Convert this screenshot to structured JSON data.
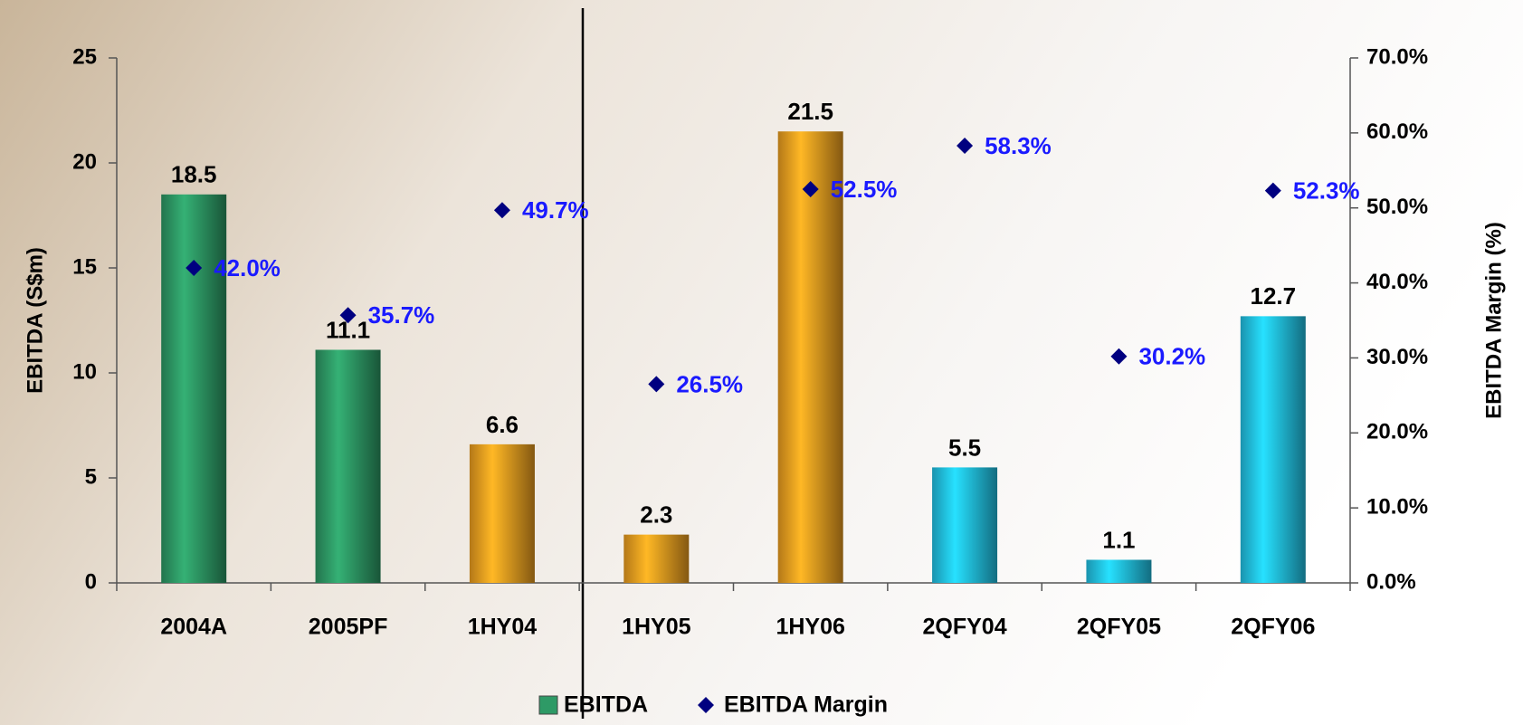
{
  "chart_data": {
    "type": "bar",
    "categories": [
      "2004A",
      "2005PF",
      "1HY04",
      "1HY05",
      "1HY06",
      "2QFY04",
      "2QFY05",
      "2QFY06"
    ],
    "series": [
      {
        "name": "EBITDA",
        "type": "bar",
        "color": "#2e9a66",
        "colors": [
          "#2e9a66",
          "#2e9a66",
          "#f0a020",
          "#f0a020",
          "#f0a020",
          "#22c4e8",
          "#22c4e8",
          "#22c4e8"
        ],
        "values": [
          18.5,
          11.1,
          6.6,
          2.3,
          21.5,
          5.5,
          1.1,
          12.7
        ]
      },
      {
        "name": "EBITDA Margin",
        "type": "scatter",
        "axis": "y2",
        "color": "#000080",
        "label_color": "#1a1aff",
        "values": [
          42.0,
          35.7,
          49.7,
          26.5,
          52.5,
          58.3,
          30.2,
          52.3
        ],
        "value_labels": [
          "42.0%",
          "35.7%",
          "49.7%",
          "26.5%",
          "52.5%",
          "58.3%",
          "30.2%",
          "52.3%"
        ]
      }
    ],
    "ylabel": "EBITDA (S$m)",
    "y2label": "EBITDA Margin (%)",
    "ylim": [
      0,
      25
    ],
    "yticks": [
      0,
      5,
      10,
      15,
      20,
      25
    ],
    "y2lim": [
      0,
      70
    ],
    "y2ticks": [
      {
        "value": 0,
        "label": "0.0%"
      },
      {
        "value": 10,
        "label": "10.0%"
      },
      {
        "value": 20,
        "label": "20.0%"
      },
      {
        "value": 30,
        "label": "30.0%"
      },
      {
        "value": 40,
        "label": "40.0%"
      },
      {
        "value": 50,
        "label": "50.0%"
      },
      {
        "value": 60,
        "label": "60.0%"
      },
      {
        "value": 70,
        "label": "70.0%"
      }
    ],
    "legend": "bottom"
  }
}
